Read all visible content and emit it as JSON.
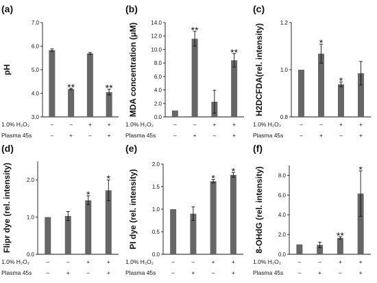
{
  "condition_rows": [
    {
      "label": "1.0% H₂O₂",
      "values": [
        "–",
        "–",
        "+",
        "+"
      ]
    },
    {
      "label": "Plasma 45s",
      "values": [
        "–",
        "+",
        "–",
        "+"
      ]
    }
  ],
  "chart_data": [
    {
      "type": "bar",
      "panel": "(a)",
      "ylabel": "pH",
      "ylim": [
        3.0,
        7.0
      ],
      "yticks": [
        "3.0",
        "4.0",
        "5.0",
        "6.0",
        "7.0"
      ],
      "values": [
        5.83,
        4.18,
        5.69,
        4.05
      ],
      "errors": [
        0.05,
        0.03,
        0.04,
        0.12
      ],
      "annotations": [
        "",
        "**",
        "",
        "**"
      ],
      "grid": false
    },
    {
      "type": "bar",
      "panel": "(b)",
      "ylabel": "MDA concentration  (μM)",
      "ylim": [
        0.0,
        14.0
      ],
      "yticks": [
        "0.0",
        "2.0",
        "4.0",
        "6.0",
        "8.0",
        "10.0",
        "12.0",
        "14.0"
      ],
      "values": [
        0.95,
        11.6,
        2.25,
        8.4
      ],
      "errors": [
        0.0,
        1.1,
        1.7,
        1.0
      ],
      "annotations": [
        "",
        "**",
        "",
        "**"
      ],
      "grid": false
    },
    {
      "type": "bar",
      "panel": "(c)",
      "ylabel": "H2DCFDA(rel. intensity)",
      "ylim": [
        0.8,
        1.2
      ],
      "yticks": [
        "0.8",
        "1.0",
        "1.2"
      ],
      "values": [
        1.0,
        1.068,
        0.938,
        0.985
      ],
      "errors": [
        0.0,
        0.04,
        0.01,
        0.05
      ],
      "annotations": [
        "",
        "*",
        "*",
        ""
      ],
      "grid": false
    },
    {
      "type": "bar",
      "panel": "(d)",
      "ylabel": "Flipr dye (rel. intensity)",
      "ylim": [
        0.0,
        2.5
      ],
      "yticks": [
        "0.0",
        "1.0",
        "2.0"
      ],
      "values": [
        1.0,
        1.03,
        1.45,
        1.72
      ],
      "errors": [
        0.0,
        0.12,
        0.12,
        0.28
      ],
      "annotations": [
        "",
        "",
        "*",
        "*"
      ],
      "grid": false
    },
    {
      "type": "bar",
      "panel": "(e)",
      "ylabel": "PI dye (rel. intensity)",
      "ylim": [
        0.0,
        2.0
      ],
      "yticks": [
        "0.0",
        "0.5",
        "1.0",
        "1.5",
        "2.0"
      ],
      "values": [
        1.0,
        0.9,
        1.62,
        1.76
      ],
      "errors": [
        0.0,
        0.15,
        0.04,
        0.05
      ],
      "annotations": [
        "",
        "",
        "*",
        "*"
      ],
      "grid": false
    },
    {
      "type": "bar",
      "panel": "(f)",
      "ylabel": "8-OHdG (rel. intensity)",
      "ylim": [
        0.0,
        9.0
      ],
      "yticks": [
        "0.0",
        "2.0",
        "4.0",
        "6.0",
        "8.0"
      ],
      "values": [
        1.0,
        0.95,
        1.65,
        6.15
      ],
      "errors": [
        0.0,
        0.28,
        0.12,
        2.3
      ],
      "annotations": [
        "",
        "",
        "**",
        "*"
      ],
      "grid": false
    }
  ]
}
